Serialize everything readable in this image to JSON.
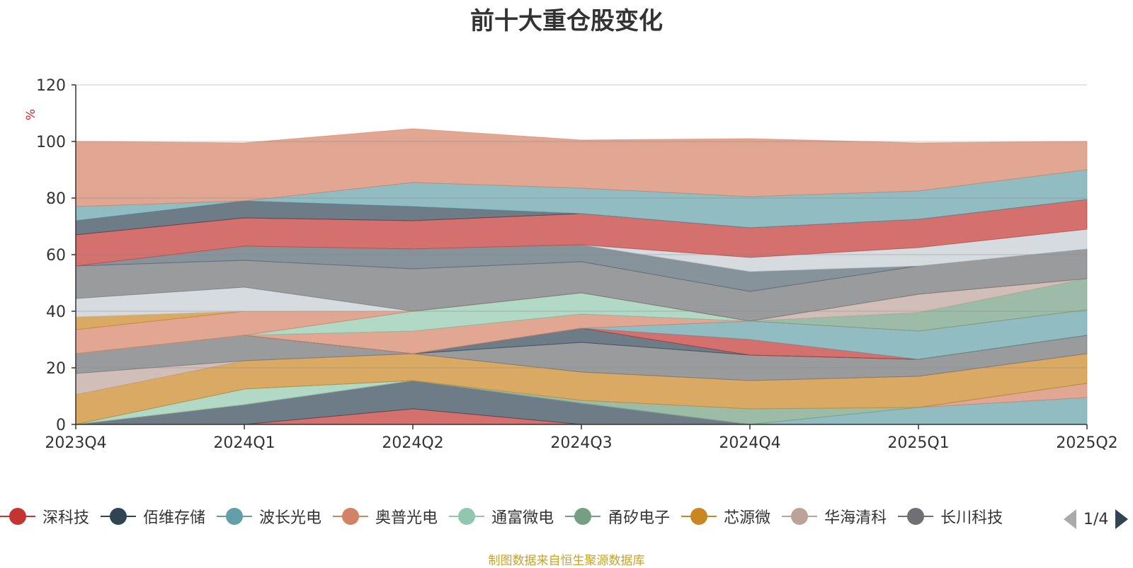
{
  "title": "前十大重仓股变化",
  "source_note": "制图数据来自恒生聚源数据库",
  "pager": {
    "text": "1/4"
  },
  "chart_data": {
    "type": "area",
    "stacked": true,
    "title": "前十大重仓股变化",
    "ylabel": "%",
    "ylim": [
      0,
      120
    ],
    "yticks": [
      0,
      20,
      40,
      60,
      80,
      100,
      120
    ],
    "categories": [
      "2023Q4",
      "2024Q1",
      "2024Q2",
      "2024Q3",
      "2024Q4",
      "2025Q1",
      "2025Q2"
    ],
    "grid": true,
    "legend_position": "bottom",
    "series": [
      {
        "name": "深科技",
        "color": "#c23531",
        "values": [
          0,
          0,
          5.5,
          0,
          0,
          0,
          0
        ]
      },
      {
        "name": "佰维存储",
        "color": "#2f4554",
        "values": [
          0,
          7,
          10,
          7.5,
          0,
          0,
          0
        ]
      },
      {
        "name": "波长光电",
        "color": "#61a0a8",
        "values": [
          0,
          0,
          0,
          0,
          0,
          6,
          9.5
        ]
      },
      {
        "name": "奥普光电",
        "color": "#d48265",
        "values": [
          0,
          0,
          0,
          0,
          0,
          0,
          5
        ]
      },
      {
        "name": "通富微电",
        "color": "#91c7ae",
        "values": [
          0,
          5.5,
          0,
          0,
          0,
          0,
          0
        ]
      },
      {
        "name": "甬矽电子",
        "color": "#749f83",
        "values": [
          0,
          0,
          0,
          1,
          5.5,
          0,
          0
        ]
      },
      {
        "name": "芯源微",
        "color": "#ca8622",
        "values": [
          10.5,
          10,
          9.5,
          10,
          10,
          11,
          10.5
        ]
      },
      {
        "name": "华海清科",
        "color": "#bda29a",
        "values": [
          7.5,
          0,
          0,
          0,
          0,
          0,
          0
        ]
      },
      {
        "name": "长川科技",
        "color": "#6e7074",
        "values": [
          7,
          9,
          0,
          10.5,
          9,
          6,
          6.5
        ]
      },
      {
        "name": "",
        "color": "#2f4554",
        "values": [
          0,
          0,
          0,
          5,
          0,
          0,
          0
        ]
      },
      {
        "name": "",
        "color": "#c23531",
        "values": [
          0,
          0,
          0,
          0,
          5.5,
          0,
          0
        ]
      },
      {
        "name": "",
        "color": "#61a0a8",
        "values": [
          0,
          0,
          0,
          0,
          6.5,
          10,
          9
        ]
      },
      {
        "name": "",
        "color": "#d48265",
        "values": [
          0,
          0,
          8,
          5,
          0,
          0,
          0
        ]
      },
      {
        "name": "",
        "color": "#749f83",
        "values": [
          0,
          0,
          0,
          0,
          0,
          6.5,
          11
        ]
      },
      {
        "name": "",
        "color": "#91c7ae",
        "values": [
          0,
          0,
          7,
          7.5,
          0,
          0,
          0
        ]
      },
      {
        "name": "",
        "color": "#bda29a",
        "values": [
          0,
          0,
          0,
          0,
          0,
          6.5,
          0
        ]
      },
      {
        "name": "",
        "color": "#d48265",
        "values": [
          8.5,
          8.5,
          0,
          0,
          0,
          0,
          0
        ]
      },
      {
        "name": "",
        "color": "#ca8622",
        "values": [
          4.5,
          0,
          0,
          0,
          0,
          0,
          0
        ]
      },
      {
        "name": "",
        "color": "#c4ccd3",
        "values": [
          6.5,
          8.5,
          0,
          0,
          0,
          0,
          0
        ]
      },
      {
        "name": "",
        "color": "#6e7074",
        "values": [
          11.5,
          9.5,
          15,
          11,
          10.5,
          10,
          10.5
        ]
      },
      {
        "name": "",
        "color": "#546570",
        "values": [
          0,
          5,
          7,
          6,
          7,
          0,
          0
        ]
      },
      {
        "name": "",
        "color": "#c4ccd3",
        "values": [
          0,
          0,
          0,
          0,
          5,
          6.5,
          7
        ]
      },
      {
        "name": "",
        "color": "#c23531",
        "values": [
          11,
          10,
          10,
          11,
          10.5,
          10,
          10.5
        ]
      },
      {
        "name": "",
        "color": "#2f4554",
        "values": [
          5,
          6,
          5,
          0,
          0,
          0,
          0
        ]
      },
      {
        "name": "",
        "color": "#61a0a8",
        "values": [
          5,
          0,
          8.5,
          9,
          11,
          10,
          10.5
        ]
      },
      {
        "name": "",
        "color": "#d48265",
        "values": [
          23,
          20.5,
          19,
          17,
          20.5,
          17,
          10
        ]
      }
    ]
  }
}
